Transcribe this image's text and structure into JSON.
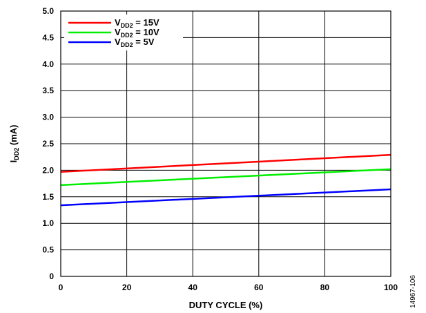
{
  "chart_data": {
    "type": "line",
    "x": [
      0,
      100
    ],
    "xlim": [
      0,
      100
    ],
    "ylim": [
      0,
      5
    ],
    "xticks": [
      "0",
      "20",
      "40",
      "60",
      "80",
      "100"
    ],
    "yticks": [
      "0",
      "0.5",
      "1.0",
      "1.5",
      "2.0",
      "2.5",
      "3.0",
      "3.5",
      "4.0",
      "4.5",
      "5.0"
    ],
    "xlabel": "DUTY CYCLE (%)",
    "ylabel": {
      "main": "I",
      "sub": "DD2",
      "rest": " (mA)"
    },
    "grid": true,
    "legend_position": "top-left",
    "series": [
      {
        "name": {
          "main": "V",
          "sub": "DD2",
          "rest": " = 15V"
        },
        "color": "#ff0000",
        "values": [
          1.97,
          2.29
        ]
      },
      {
        "name": {
          "main": "V",
          "sub": "DD2",
          "rest": " = 10V"
        },
        "color": "#00ee00",
        "values": [
          1.72,
          2.02
        ]
      },
      {
        "name": {
          "main": "V",
          "sub": "DD2",
          "rest": " = 5V"
        },
        "color": "#0000ff",
        "values": [
          1.34,
          1.64
        ]
      }
    ],
    "figure_id": "14967-106"
  }
}
